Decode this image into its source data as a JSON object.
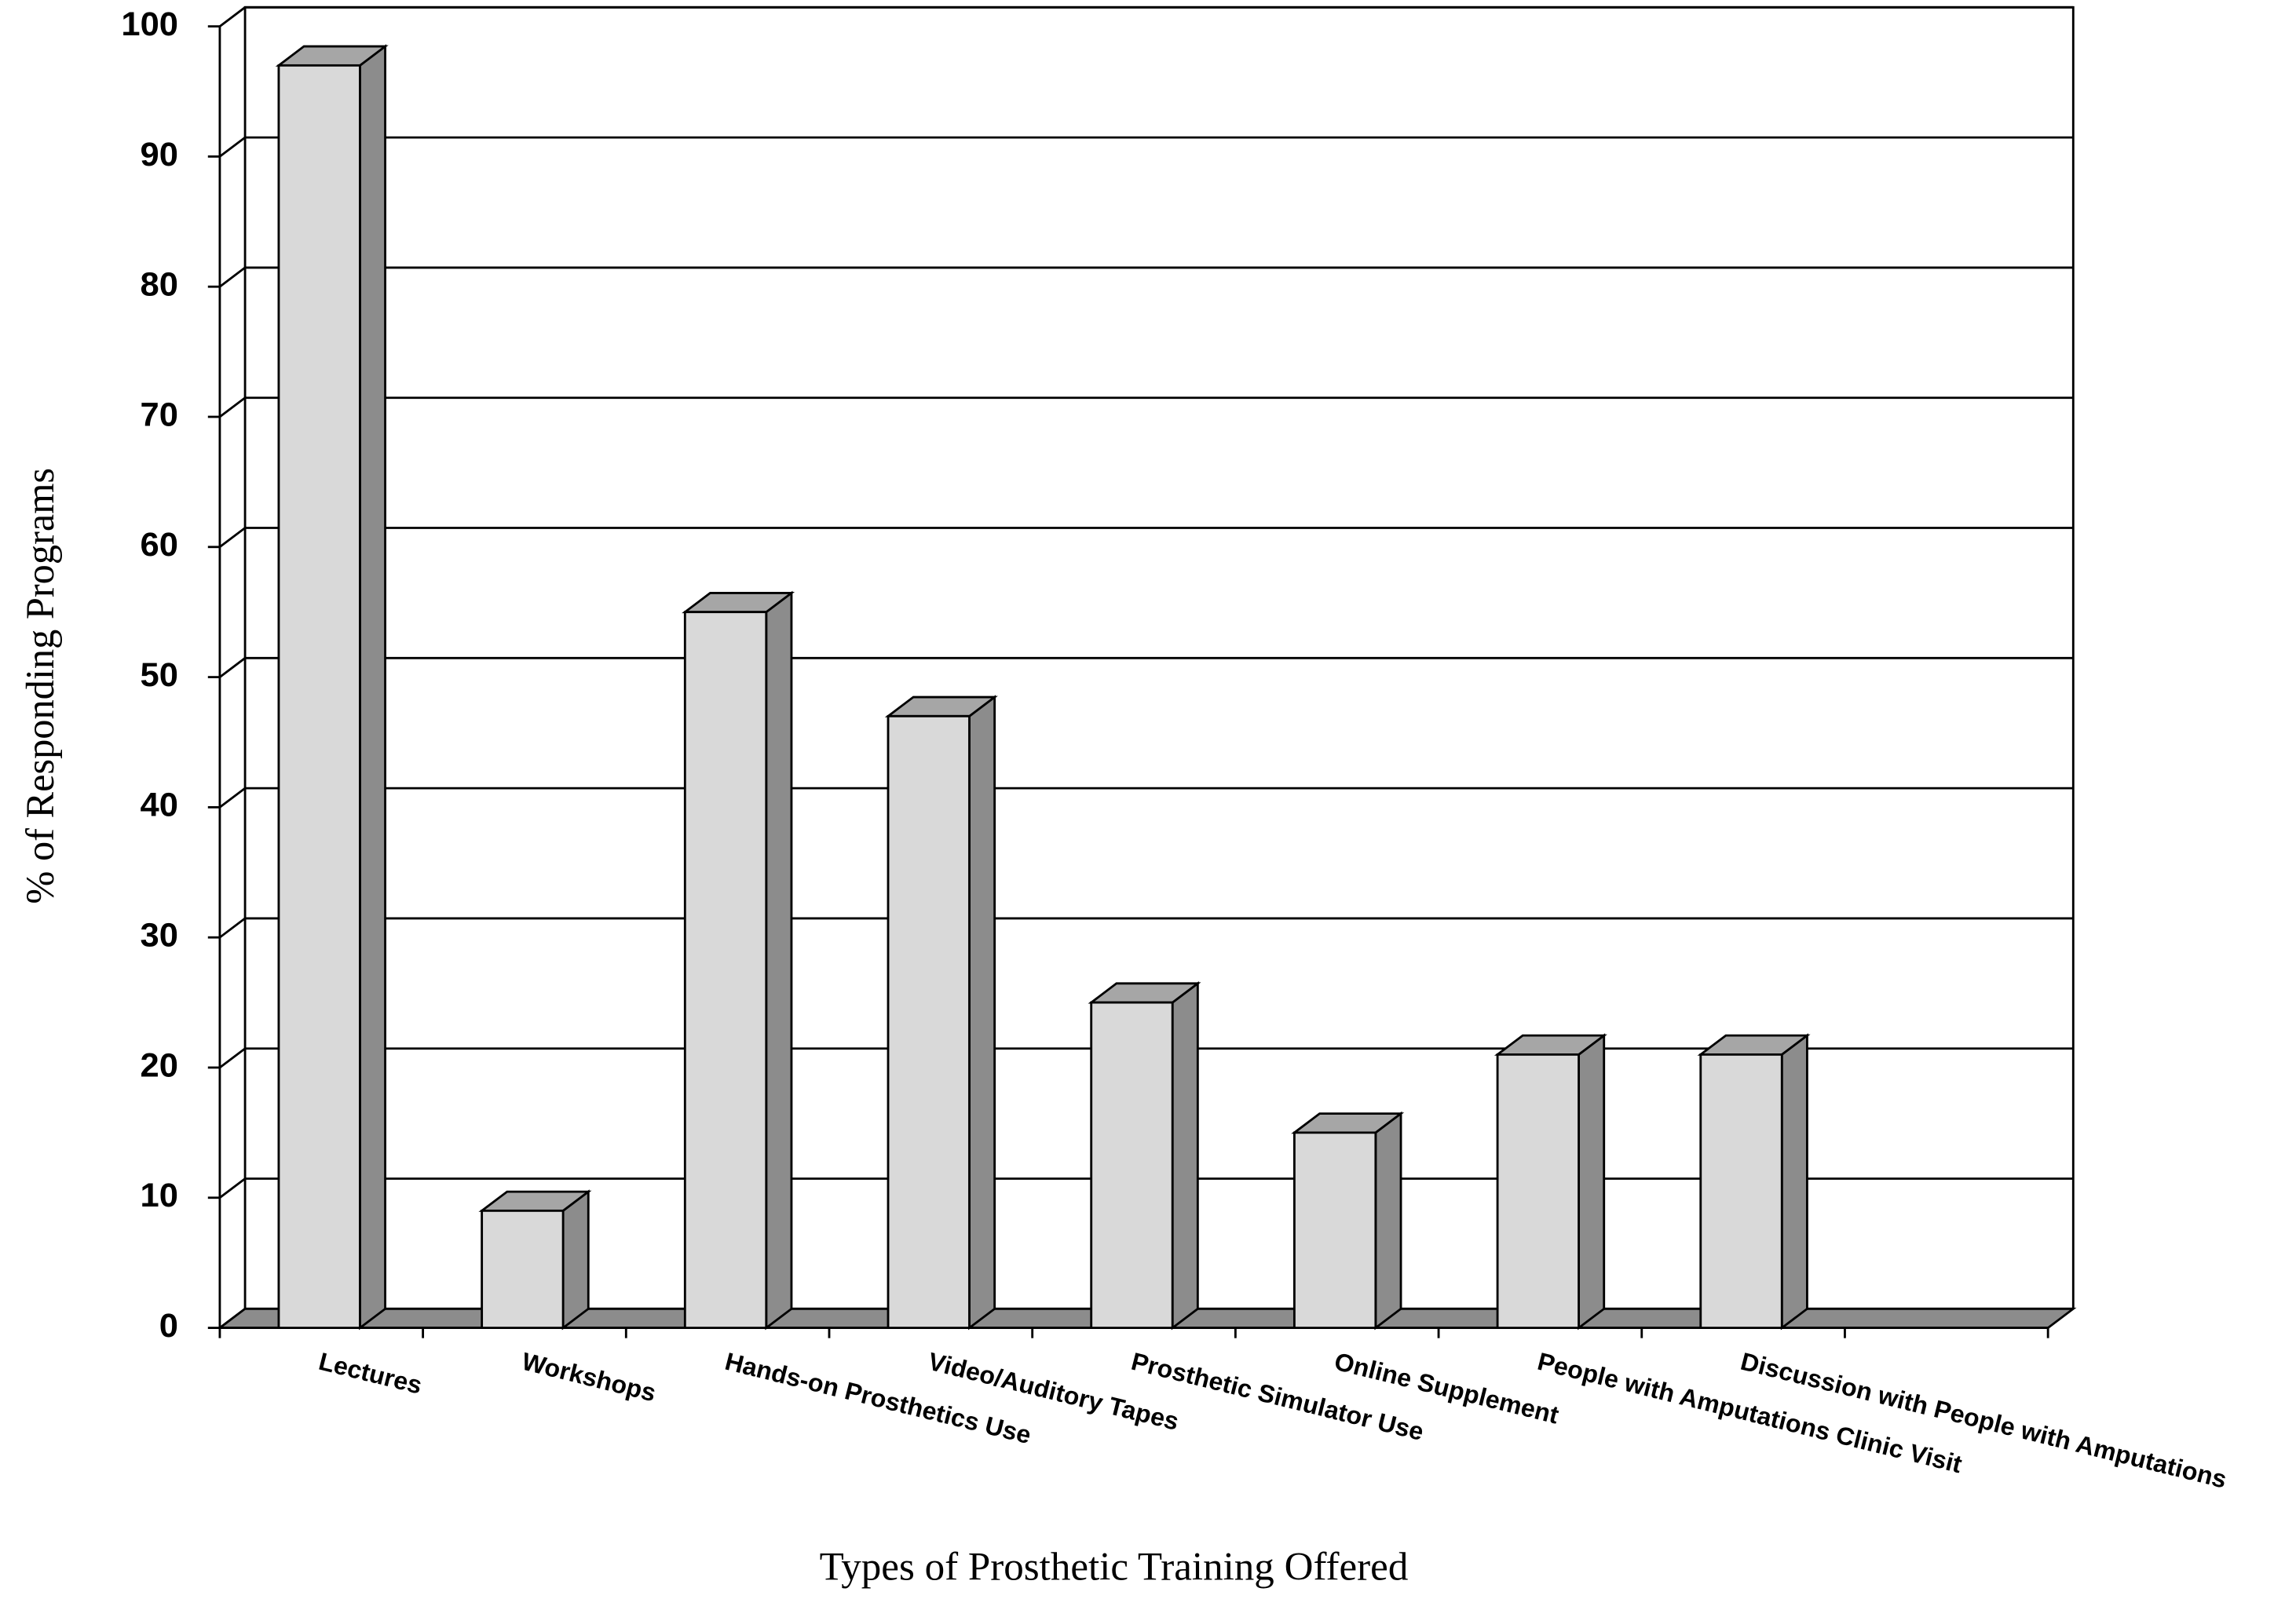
{
  "chart_data": {
    "type": "bar3d",
    "x_label": "Types of Prosthetic Training Offered",
    "y_label": "% of Responding Programs",
    "categories": [
      "Lectures",
      "Workshops",
      "Hands-on Prosthetics Use",
      "Video/Auditory Tapes",
      "Prosthetic Simulator Use",
      "Online Supplement",
      "People with Amputations Clinic Visit",
      "Discussion with People with Amputations"
    ],
    "values": [
      97,
      9,
      55,
      47,
      25,
      15,
      21,
      21
    ],
    "color": "#d9d9d9",
    "ylim": [
      0,
      100
    ],
    "yticks": [
      0,
      10,
      20,
      30,
      40,
      50,
      60,
      70,
      80,
      90,
      100
    ],
    "grid": true
  }
}
